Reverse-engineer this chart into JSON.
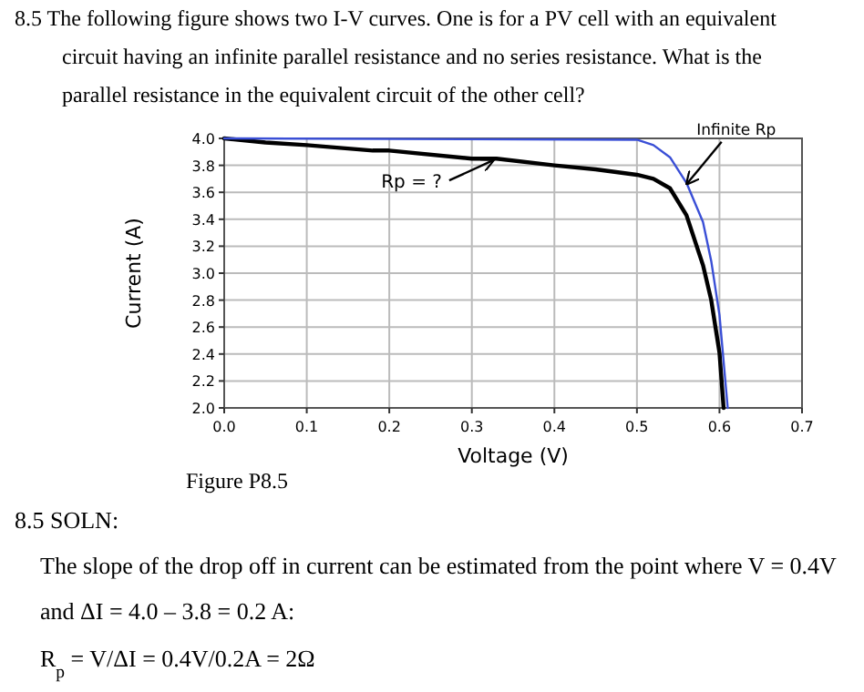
{
  "chart_data": {
    "type": "line",
    "title": "8.5 The following figure shows two I-V curves.  One is for a PV cell with an equivalent circuit having an infinite parallel resistance and no series resistance.  What is the parallel resistance in the equivalent circuit of the other cell?",
    "xlabel": "Voltage (V)",
    "ylabel": "Current (A)",
    "xlim": [
      0,
      0.7
    ],
    "xticks": [
      {
        "value": 0,
        "label": "0.0"
      },
      0.1,
      0.2,
      0.3,
      0.4,
      0.5,
      0.6,
      0.7
    ],
    "ylim": [
      2,
      4
    ],
    "yticks": [
      {
        "value": 2,
        "label": "2.0"
      },
      2.2,
      2.4,
      2.6,
      2.8,
      {
        "value": 3,
        "label": "3.0"
      },
      3.2,
      3.4,
      3.6,
      3.8,
      {
        "value": 4,
        "label": "4.0"
      }
    ],
    "grid": true,
    "marker": "none",
    "line_style": "solid",
    "series": [
      {
        "color": "#000000",
        "x": [
          0,
          0.05,
          0.1,
          0.18,
          0.2,
          0.3,
          0.33,
          0.4,
          0.45,
          0.5,
          0.52,
          0.54,
          0.56,
          0.58,
          0.59,
          0.6,
          0.605
        ],
        "values": [
          4.0,
          3.97,
          3.95,
          3.91,
          3.91,
          3.85,
          3.85,
          3.8,
          3.77,
          3.73,
          3.7,
          3.63,
          3.43,
          3.06,
          2.8,
          2.41,
          2.0
        ]
      },
      {
        "color": "#3a4fd6",
        "x": [
          0,
          0.5,
          0.52,
          0.54,
          0.56,
          0.58,
          0.59,
          0.6,
          0.61
        ],
        "values": [
          4.0,
          3.99,
          3.95,
          3.86,
          3.67,
          3.38,
          3.09,
          2.69,
          2.0
        ]
      }
    ],
    "annotations": [
      {
        "text": "Rp = ?",
        "x": 0.33,
        "y": 3.85
      },
      {
        "text": "Infinite Rp",
        "x": 0.565,
        "y": 3.65
      },
      "Figure P8.5",
      "8.5 SOLN:",
      "The slope of the drop off in current can be estimated from the point where V = 0.4V",
      "and ΔI = 4.0 – 3.8 = 0.2 A:",
      "R$_{p}$ = V/ΔI = 0.4V/0.2A = 2Ω"
    ]
  }
}
